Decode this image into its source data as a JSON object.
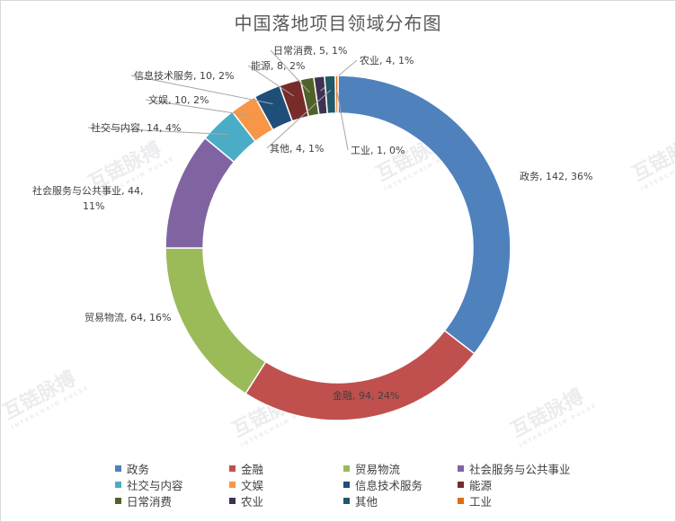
{
  "chart_data": {
    "type": "pie",
    "variant": "donut",
    "title": "中国落地项目领域分布图",
    "series": [
      {
        "name": "政务",
        "value": 142,
        "percent": "36%",
        "color": "#4F81BD",
        "label": "政务, 142, 36%"
      },
      {
        "name": "金融",
        "value": 94,
        "percent": "24%",
        "color": "#C0504D",
        "label": "金融, 94, 24%"
      },
      {
        "name": "贸易物流",
        "value": 64,
        "percent": "16%",
        "color": "#9BBB59",
        "label": "贸易物流, 64, 16%"
      },
      {
        "name": "社会服务与公共事业",
        "value": 44,
        "percent": "11%",
        "color": "#8064A2",
        "label": "社会服务与公共事业, 44, 11%"
      },
      {
        "name": "社交与内容",
        "value": 14,
        "percent": "4%",
        "color": "#4BACC6",
        "label": "社交与内容, 14, 4%"
      },
      {
        "name": "文娱",
        "value": 10,
        "percent": "2%",
        "color": "#F79646",
        "label": "文娱, 10, 2%"
      },
      {
        "name": "信息技术服务",
        "value": 10,
        "percent": "2%",
        "color": "#1F4E79",
        "label": "信息技术服务, 10, 2%"
      },
      {
        "name": "能源",
        "value": 8,
        "percent": "2%",
        "color": "#772C2A",
        "label": "能源, 8, 2%"
      },
      {
        "name": "日常消费",
        "value": 5,
        "percent": "1%",
        "color": "#4F6228",
        "label": "日常消费, 5, 1%"
      },
      {
        "name": "农业",
        "value": 4,
        "percent": "1%",
        "color": "#403152",
        "label": "农业, 4, 1%"
      },
      {
        "name": "其他",
        "value": 4,
        "percent": "1%",
        "color": "#215968",
        "label": "其他, 4, 1%"
      },
      {
        "name": "工业",
        "value": 1,
        "percent": "0%",
        "color": "#E46C0A",
        "label": "工业, 1, 0%"
      }
    ],
    "legend_position": "bottom"
  },
  "watermark": {
    "text": "互链脉搏",
    "subtext": "INTERCHAIN PULSE"
  }
}
